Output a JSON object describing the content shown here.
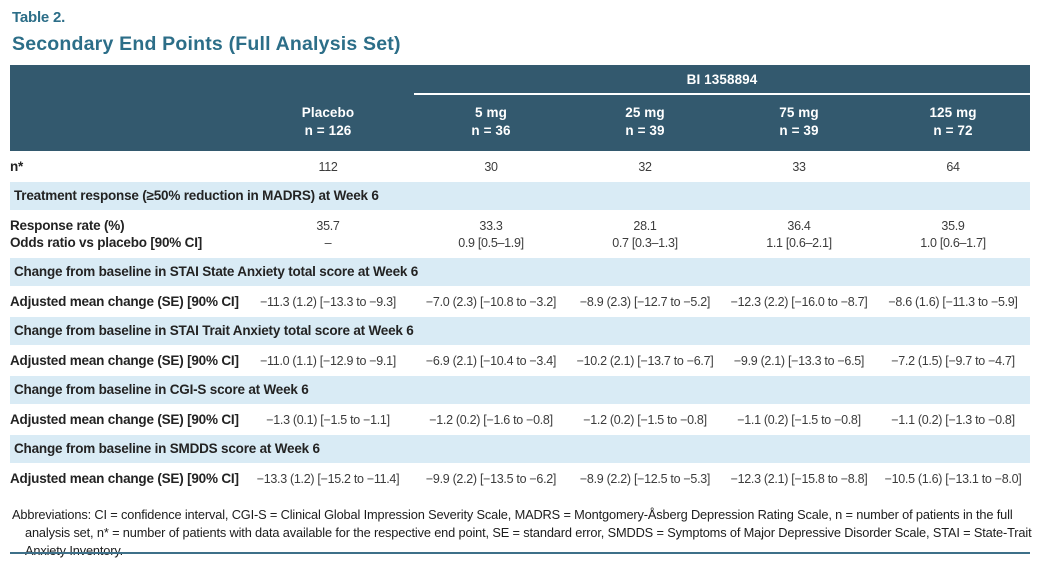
{
  "page": {
    "table_label": "Table 2.",
    "title": "Secondary End Points (Full Analysis Set)"
  },
  "colors": {
    "header_bg": "#33596E",
    "section_bg": "#D9EBF5",
    "title_color": "#2C6E88",
    "rule_color": "#3E7089"
  },
  "table": {
    "group_header": "BI 1358894",
    "columns": [
      {
        "name": "Placebo",
        "n": "n = 126"
      },
      {
        "name": "5 mg",
        "n": "n = 36"
      },
      {
        "name": "25 mg",
        "n": "n = 39"
      },
      {
        "name": "75 mg",
        "n": "n = 39"
      },
      {
        "name": "125 mg",
        "n": "n = 72"
      }
    ],
    "rows": [
      {
        "type": "data",
        "label": "n*",
        "values": [
          "112",
          "30",
          "32",
          "33",
          "64"
        ]
      },
      {
        "type": "section",
        "label": "Treatment response (≥50% reduction in MADRS) at Week 6"
      },
      {
        "type": "data",
        "label": "Response rate (%)",
        "values": [
          "35.7",
          "33.3",
          "28.1",
          "36.4",
          "35.9"
        ]
      },
      {
        "type": "data",
        "label": "Odds ratio vs placebo [90% CI]",
        "values": [
          "–",
          "0.9 [0.5–1.9]",
          "0.7 [0.3–1.3]",
          "1.1 [0.6–2.1]",
          "1.0 [0.6–1.7]"
        ]
      },
      {
        "type": "section",
        "label": "Change from baseline in STAI State Anxiety total score at Week 6"
      },
      {
        "type": "data",
        "label": "Adjusted mean change (SE) [90% CI]",
        "values": [
          "−11.3 (1.2) [−13.3 to −9.3]",
          "−7.0 (2.3) [−10.8 to −3.2]",
          "−8.9 (2.3) [−12.7 to −5.2]",
          "−12.3 (2.2) [−16.0 to −8.7]",
          "−8.6 (1.6) [−11.3 to −5.9]"
        ]
      },
      {
        "type": "section",
        "label": "Change from baseline in STAI Trait Anxiety total score at Week 6"
      },
      {
        "type": "data",
        "label": "Adjusted mean change (SE) [90% CI]",
        "values": [
          "−11.0 (1.1) [−12.9 to −9.1]",
          "−6.9 (2.1) [−10.4 to −3.4]",
          "−10.2 (2.1) [−13.7 to −6.7]",
          "−9.9 (2.1) [−13.3 to −6.5]",
          "−7.2 (1.5) [−9.7 to −4.7]"
        ]
      },
      {
        "type": "section",
        "label": "Change from baseline in CGI-S score at Week 6"
      },
      {
        "type": "data",
        "label": "Adjusted mean change (SE) [90% CI]",
        "values": [
          "−1.3 (0.1) [−1.5 to −1.1]",
          "−1.2 (0.2) [−1.6 to −0.8]",
          "−1.2 (0.2) [−1.5 to −0.8]",
          "−1.1 (0.2) [−1.5 to −0.8]",
          "−1.1 (0.2) [−1.3 to −0.8]"
        ]
      },
      {
        "type": "section",
        "label": "Change from baseline in SMDDS score at Week 6"
      },
      {
        "type": "data",
        "label": "Adjusted mean change (SE) [90% CI]",
        "values": [
          "−13.3 (1.2) [−15.2 to −11.4]",
          "−9.9 (2.2) [−13.5 to −6.2]",
          "−8.9 (2.2) [−12.5 to −5.3]",
          "−12.3 (2.1) [−15.8 to −8.8]",
          "−10.5 (1.6) [−13.1 to −8.0]"
        ]
      }
    ]
  },
  "footnote": "Abbreviations: CI = confidence interval, CGI-S = Clinical Global Impression Severity Scale, MADRS = Montgomery-Åsberg Depression Rating Scale, n = number of patients in the full analysis set, n* = number of patients with data available for the respective end point, SE = standard error, SMDDS = Symptoms of Major Depressive Disorder Scale, STAI = State-Trait Anxiety Inventory."
}
